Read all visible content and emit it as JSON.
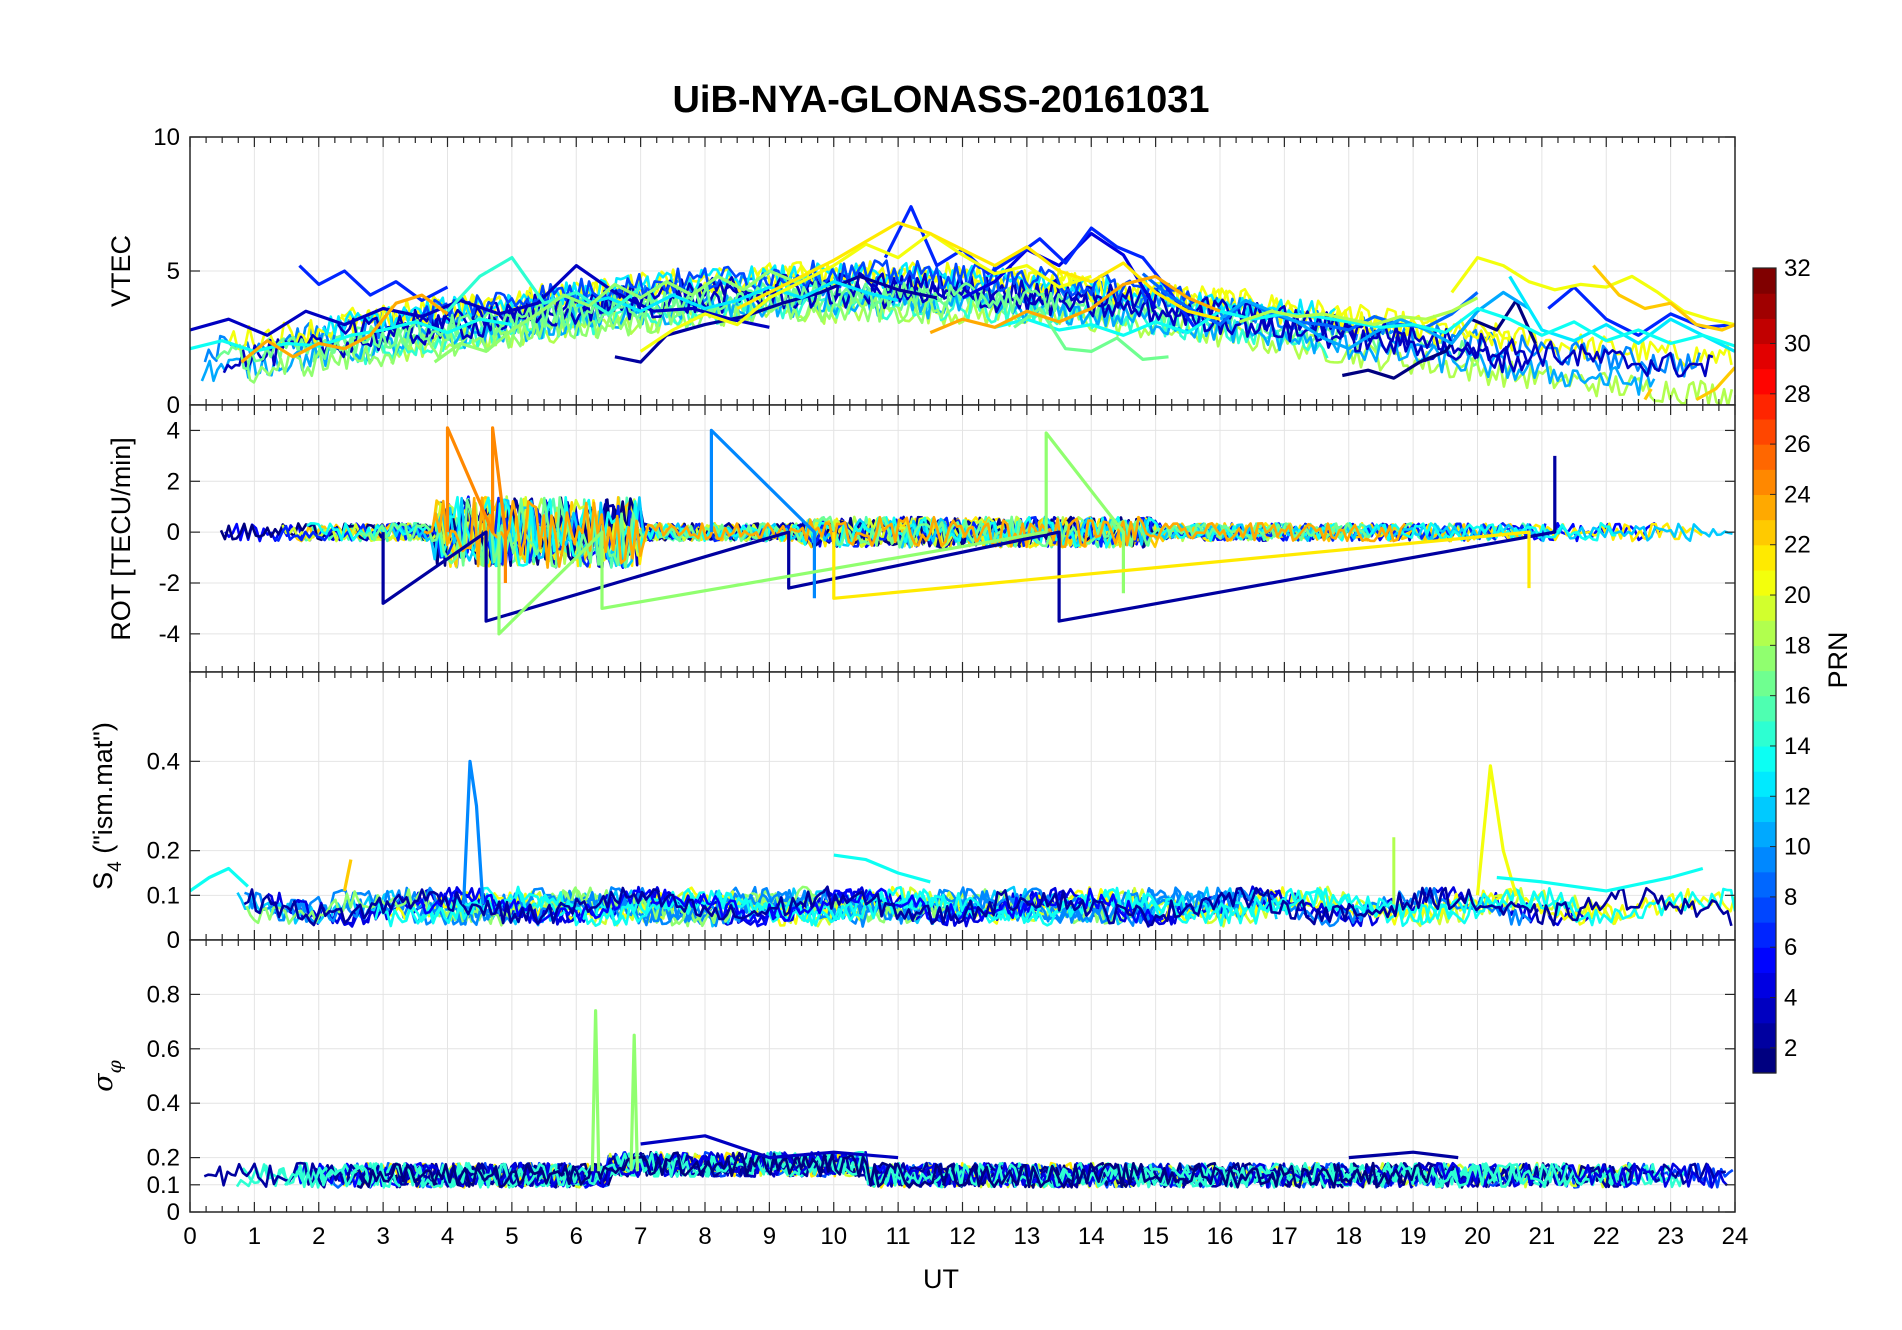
{
  "figure": {
    "title": "UiB-NYA-GLONASS-20161031"
  },
  "chart_data": [
    {
      "type": "line",
      "panel": "vtec",
      "ylabel": "VTEC",
      "ylim": [
        0,
        10
      ],
      "xlim": [
        0,
        24
      ],
      "yticks": [
        0,
        5,
        10
      ],
      "xticks": [
        0,
        1,
        2,
        3,
        4,
        5,
        6,
        7,
        8,
        9,
        10,
        11,
        12,
        13,
        14,
        15,
        16,
        17,
        18,
        19,
        20,
        21,
        22,
        23,
        24
      ],
      "grid": true,
      "series": [
        {
          "prn": 1,
          "x": [
            17.9,
            18.3,
            18.7,
            19.1,
            19.5,
            19.9,
            20.3,
            20.6,
            20.9
          ],
          "y": [
            1.1,
            1.3,
            1.0,
            1.6,
            2.0,
            3.2,
            2.8,
            3.9,
            2.3
          ]
        },
        {
          "prn": 2,
          "x": [
            6.6,
            7.0,
            7.4,
            8.0,
            8.6,
            9.2,
            9.8,
            10.4,
            11.0,
            11.6
          ],
          "y": [
            1.8,
            1.6,
            2.6,
            3.0,
            3.3,
            3.8,
            4.2,
            4.8,
            4.3,
            4.0
          ]
        },
        {
          "prn": 3,
          "x": [
            0.0,
            0.6,
            1.2,
            1.8,
            2.4,
            3.0,
            3.6,
            4.2,
            4.8,
            5.4,
            6.0,
            6.6,
            7.2,
            7.8,
            8.4,
            9.0
          ],
          "y": [
            2.8,
            3.2,
            2.6,
            3.5,
            3.0,
            3.6,
            3.3,
            3.9,
            3.4,
            3.8,
            5.2,
            4.2,
            3.5,
            3.6,
            3.2,
            2.9
          ]
        },
        {
          "prn": 4,
          "x": [
            12.0,
            12.5,
            13.0,
            13.5,
            14.0,
            14.5,
            15.0
          ],
          "y": [
            4.0,
            4.6,
            5.8,
            5.2,
            6.4,
            5.6,
            3.6
          ]
        },
        {
          "prn": 6,
          "x": [
            1.7,
            2.0,
            2.4,
            2.8,
            3.2,
            3.6,
            4.0
          ],
          "y": [
            5.2,
            4.5,
            5.0,
            4.1,
            4.6,
            3.9,
            4.4
          ]
        },
        {
          "prn": 6,
          "x": [
            10.8,
            11.2,
            11.6,
            12.0,
            12.4,
            12.8,
            13.2,
            13.6,
            14.0,
            14.4,
            14.8,
            15.2,
            15.6,
            16.0
          ],
          "y": [
            5.5,
            7.4,
            5.2,
            5.8,
            4.9,
            5.5,
            6.2,
            5.3,
            6.6,
            5.9,
            5.5,
            4.3,
            2.9,
            3.5
          ]
        },
        {
          "prn": 6,
          "x": [
            21.1,
            21.5,
            22.0,
            22.5,
            23.0,
            23.5,
            24.0
          ],
          "y": [
            3.6,
            4.4,
            3.2,
            2.6,
            3.4,
            2.9,
            3.0
          ]
        },
        {
          "prn": 8,
          "x": [
            14.8,
            15.2,
            15.6,
            16.0,
            16.4,
            16.8,
            17.2,
            17.6,
            18.0,
            18.4,
            18.8,
            19.2,
            19.6,
            20.0
          ],
          "y": [
            4.9,
            4.1,
            3.5,
            3.0,
            3.9,
            3.4,
            3.1,
            3.0,
            2.8,
            3.3,
            3.0,
            2.9,
            3.4,
            4.2
          ]
        },
        {
          "prn": 10,
          "x": [
            16.0,
            16.4,
            16.8,
            17.2,
            17.6,
            18.0,
            18.4,
            18.8,
            19.2,
            19.6,
            20.0,
            20.4,
            20.8
          ],
          "y": [
            3.2,
            3.9,
            3.5,
            3.1,
            2.5,
            2.1,
            2.7,
            3.2,
            2.8,
            2.3,
            3.5,
            4.2,
            3.6
          ]
        },
        {
          "prn": 12,
          "x": [
            6.0,
            6.5,
            7.0,
            7.5,
            8.0,
            8.5,
            9.0,
            9.5,
            10.0,
            10.5,
            11.0
          ],
          "y": [
            3.7,
            4.0,
            3.5,
            4.1,
            3.6,
            3.9,
            4.4,
            4.0,
            4.6,
            4.2,
            3.9
          ]
        },
        {
          "prn": 12,
          "x": [
            20.5,
            21.0,
            21.5,
            22.0,
            22.5,
            23.0,
            23.5,
            24.0
          ],
          "y": [
            4.8,
            2.8,
            2.4,
            3.0,
            2.3,
            3.2,
            2.6,
            2.0
          ]
        },
        {
          "prn": 13,
          "x": [
            0.0,
            0.5,
            1.0,
            1.5,
            2.0,
            2.5,
            3.0,
            3.5,
            4.0,
            4.5,
            5.0
          ],
          "y": [
            2.1,
            2.4,
            2.0,
            2.3,
            2.2,
            2.6,
            2.8,
            3.1,
            2.7,
            3.2,
            3.0
          ]
        },
        {
          "prn": 13,
          "x": [
            12.5,
            13.0,
            13.5,
            14.0,
            14.5,
            15.0,
            15.5,
            16.0,
            16.5,
            17.0,
            17.5,
            18.0,
            18.5,
            19.0,
            19.5,
            20.0,
            20.5,
            21.0,
            21.5,
            22.0,
            22.5,
            23.0,
            23.5,
            24.0
          ],
          "y": [
            2.9,
            3.2,
            2.8,
            3.0,
            2.6,
            3.1,
            2.7,
            3.5,
            3.2,
            3.4,
            3.3,
            3.1,
            2.9,
            3.0,
            2.7,
            3.6,
            3.2,
            2.6,
            3.1,
            2.4,
            2.8,
            2.3,
            2.6,
            2.2
          ]
        },
        {
          "prn": 14,
          "x": [
            4.0,
            4.5,
            5.0,
            5.5,
            6.0,
            6.5,
            7.0
          ],
          "y": [
            3.5,
            4.8,
            5.5,
            3.8,
            4.2,
            3.4,
            4.4
          ]
        },
        {
          "prn": 16,
          "x": [
            12.8,
            13.2,
            13.6,
            14.0,
            14.4,
            14.8,
            15.2
          ],
          "y": [
            2.9,
            3.6,
            2.1,
            2.0,
            2.5,
            1.7,
            1.8
          ]
        },
        {
          "prn": 17,
          "x": [
            3.8,
            4.2,
            4.6,
            5.0,
            5.4,
            5.8,
            6.2,
            6.6,
            7.0,
            7.4,
            7.8,
            8.2,
            8.6,
            9.0,
            9.4,
            9.8
          ],
          "y": [
            1.6,
            2.3,
            2.0,
            2.8,
            3.4,
            4.1,
            3.7,
            4.5,
            4.0,
            4.6,
            4.1,
            4.8,
            4.3,
            5.0,
            4.6,
            5.2
          ]
        },
        {
          "prn": 18,
          "x": [
            16.3,
            16.8,
            17.2,
            17.6,
            18.0,
            18.4,
            18.8,
            19.2,
            19.6,
            20.0
          ],
          "y": [
            3.1,
            3.5,
            3.3,
            3.4,
            3.2,
            3.0,
            3.3,
            3.2,
            3.5,
            4.0
          ]
        },
        {
          "prn": 20,
          "x": [
            7.0,
            7.5,
            8.0,
            8.5,
            9.0,
            9.5,
            10.0,
            10.5,
            11.0,
            11.5,
            12.0,
            12.5,
            13.0,
            13.5,
            14.0
          ],
          "y": [
            2.0,
            2.8,
            3.4,
            3.0,
            4.0,
            4.6,
            5.2,
            6.0,
            5.5,
            6.4,
            5.6,
            4.9,
            5.2,
            4.4,
            4.8
          ]
        },
        {
          "prn": 20,
          "x": [
            19.6,
            20.0,
            20.4,
            20.8,
            21.2,
            21.6,
            22.0,
            22.4,
            22.8,
            23.2,
            23.6,
            24.0
          ],
          "y": [
            4.2,
            5.5,
            5.2,
            4.6,
            4.3,
            4.5,
            4.4,
            4.8,
            4.2,
            3.5,
            3.2,
            3.0
          ]
        },
        {
          "prn": 21,
          "x": [
            8.5,
            9.0,
            9.5,
            10.0,
            10.5,
            11.0,
            11.5,
            12.0,
            12.5,
            13.0,
            13.5,
            14.0,
            14.5,
            15.0,
            15.5,
            16.0
          ],
          "y": [
            3.6,
            4.2,
            4.8,
            5.4,
            6.1,
            6.8,
            6.4,
            5.8,
            5.2,
            5.9,
            5.0,
            4.6,
            5.3,
            4.2,
            3.5,
            3.2
          ]
        },
        {
          "prn": 22,
          "x": [
            22.6,
            22.7
          ],
          "y": [
            0.2,
            0.6
          ]
        },
        {
          "prn": 22,
          "x": [
            23.4,
            23.7,
            24.0
          ],
          "y": [
            0.2,
            0.6,
            1.4
          ]
        },
        {
          "prn": 22,
          "x": [
            21.8,
            22.2,
            22.6,
            23.0,
            23.4,
            23.8,
            24.0
          ],
          "y": [
            5.2,
            4.1,
            3.6,
            3.8,
            3.0,
            2.8,
            3.0
          ]
        },
        {
          "prn": 23,
          "x": [
            0.8,
            1.2,
            1.6,
            2.0,
            2.4,
            2.8,
            3.2,
            3.6,
            4.0
          ],
          "y": [
            1.6,
            2.4,
            1.8,
            2.3,
            2.1,
            2.6,
            3.8,
            4.1,
            3.4
          ]
        },
        {
          "prn": 23,
          "x": [
            11.5,
            12.0,
            12.5,
            13.0,
            13.5,
            14.0,
            14.5,
            15.0,
            15.5,
            16.0
          ],
          "y": [
            2.7,
            3.2,
            2.9,
            3.5,
            3.1,
            3.6,
            4.5,
            4.8,
            4.0,
            3.5
          ]
        }
      ]
    },
    {
      "type": "line",
      "panel": "rot",
      "ylabel": "ROT [TECU/min]",
      "ylim": [
        -5.5,
        5
      ],
      "yticks": [
        -4,
        -2,
        0,
        2,
        4
      ],
      "grid": true,
      "series": [
        {
          "prn": 2,
          "x": [
            3.0,
            3.0,
            4.6,
            4.6,
            9.3,
            9.3,
            13.5,
            13.5,
            21.2,
            21.2
          ],
          "y": [
            0,
            -2.8,
            0,
            -3.5,
            0,
            -2.2,
            0,
            -3.5,
            0,
            3.0
          ]
        },
        {
          "prn": 9,
          "x": [
            8.1,
            8.1,
            9.7,
            9.7
          ],
          "y": [
            0,
            4.0,
            0,
            -2.6
          ]
        },
        {
          "prn": 17,
          "x": [
            4.8,
            4.8,
            6.4,
            6.4,
            13.3,
            13.3,
            14.5,
            14.5
          ],
          "y": [
            0,
            -4.0,
            0,
            -3.0,
            0,
            3.9,
            0,
            -2.4
          ]
        },
        {
          "prn": 24,
          "x": [
            4.0,
            4.0,
            4.7,
            4.7,
            4.9,
            4.9
          ],
          "y": [
            0,
            4.1,
            0,
            4.1,
            0,
            -2.0
          ]
        },
        {
          "prn": 21,
          "x": [
            10.0,
            10.0,
            20.8,
            20.8
          ],
          "y": [
            0,
            -2.6,
            0,
            -2.2
          ]
        }
      ]
    },
    {
      "type": "line",
      "panel": "s4",
      "ylabel": "S4 (\"ism.mat\")",
      "ylim": [
        0,
        0.6
      ],
      "yticks": [
        0,
        0.1,
        0.2,
        0.4
      ],
      "grid": true,
      "series": [
        {
          "prn": 9,
          "x": [
            4.25,
            4.35,
            4.45,
            4.55
          ],
          "y": [
            0.08,
            0.4,
            0.3,
            0.08
          ]
        },
        {
          "prn": 20,
          "x": [
            20.0,
            20.2,
            20.4,
            20.6
          ],
          "y": [
            0.1,
            0.39,
            0.2,
            0.1
          ]
        },
        {
          "prn": 13,
          "x": [
            0.0,
            0.3,
            0.6,
            0.9
          ],
          "y": [
            0.11,
            0.14,
            0.16,
            0.12
          ]
        },
        {
          "prn": 13,
          "x": [
            10.0,
            10.5,
            11.0,
            11.5
          ],
          "y": [
            0.19,
            0.18,
            0.15,
            0.13
          ]
        },
        {
          "prn": 13,
          "x": [
            20.3,
            21.0,
            22.0,
            23.0,
            23.5
          ],
          "y": [
            0.14,
            0.13,
            0.11,
            0.14,
            0.16
          ]
        },
        {
          "prn": 18,
          "x": [
            18.7
          ],
          "y": [
            0.23
          ]
        },
        {
          "prn": 22,
          "x": [
            2.4,
            2.5
          ],
          "y": [
            0.11,
            0.18
          ]
        }
      ]
    },
    {
      "type": "line",
      "panel": "sigma",
      "ylabel": "σφ",
      "ylim": [
        0,
        1
      ],
      "yticks": [
        0,
        0.1,
        0.2,
        0.4,
        0.6,
        0.8
      ],
      "grid": true,
      "series": [
        {
          "prn": 17,
          "x": [
            6.25,
            6.3,
            6.35
          ],
          "y": [
            0.15,
            0.74,
            0.15
          ]
        },
        {
          "prn": 17,
          "x": [
            6.85,
            6.9,
            6.95
          ],
          "y": [
            0.15,
            0.65,
            0.15
          ]
        },
        {
          "prn": 3,
          "x": [
            7.0,
            8.0,
            9.0,
            10.0,
            11.0
          ],
          "y": [
            0.25,
            0.28,
            0.2,
            0.22,
            0.2
          ]
        },
        {
          "prn": 2,
          "x": [
            18.0,
            19.0,
            19.7
          ],
          "y": [
            0.2,
            0.22,
            0.2
          ]
        }
      ]
    }
  ],
  "axes": {
    "xlabel": "UT"
  },
  "colorbar": {
    "label": "PRN",
    "range": [
      1,
      32
    ],
    "ticks": [
      2,
      4,
      6,
      8,
      10,
      12,
      14,
      16,
      18,
      20,
      22,
      24,
      26,
      28,
      30,
      32
    ],
    "colormap": "jet"
  }
}
